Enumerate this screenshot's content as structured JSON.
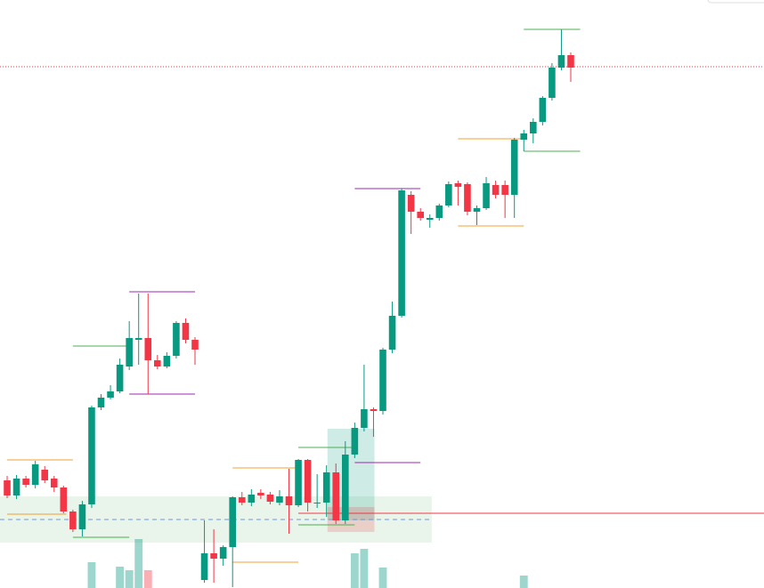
{
  "chart_data": {
    "type": "candlestick",
    "up_color": "#089981",
    "down_color": "#f23645",
    "xlim": [
      -0.76,
      80.57
    ],
    "ylim": [
      0,
      661
    ],
    "open": [
      121,
      104,
      123,
      116,
      133,
      123,
      113,
      86,
      66,
      94,
      203,
      214,
      221,
      249,
      279,
      281,
      256,
      249,
      261,
      298,
      279,
      9,
      39,
      33,
      46,
      102,
      96,
      107,
      105,
      96,
      103,
      93,
      144,
      95,
      96,
      130,
      76,
      150,
      180,
      201,
      199,
      268,
      306,
      442,
      423,
      414,
      416,
      430,
      455,
      454,
      423,
      427,
      453,
      453,
      442,
      504,
      511,
      524,
      551,
      585,
      599
    ],
    "high": [
      126,
      127,
      126,
      143,
      137,
      126,
      115,
      88,
      98,
      205,
      218,
      228,
      258,
      300,
      331,
      331,
      262,
      265,
      300,
      303,
      282,
      76,
      66,
      48,
      103,
      108,
      111,
      111,
      108,
      110,
      134,
      145,
      145,
      128,
      138,
      140,
      165,
      186,
      251,
      203,
      270,
      322,
      449,
      446,
      427,
      420,
      432,
      457,
      458,
      456,
      430,
      462,
      458,
      458,
      506,
      515,
      528,
      553,
      590,
      628,
      602
    ],
    "low": [
      101,
      100,
      113,
      112,
      118,
      108,
      84,
      63,
      58,
      90,
      200,
      212,
      219,
      245,
      251,
      218,
      246,
      247,
      258,
      275,
      251,
      6,
      6,
      25,
      1,
      93,
      92,
      100,
      94,
      93,
      61,
      91,
      86,
      90,
      80,
      72,
      72,
      146,
      176,
      170,
      195,
      264,
      304,
      398,
      413,
      405,
      413,
      428,
      430,
      419,
      408,
      425,
      438,
      416,
      416,
      491,
      500,
      520,
      548,
      582,
      569
    ],
    "close": [
      104,
      123,
      116,
      139,
      121,
      113,
      86,
      66,
      94,
      203,
      214,
      221,
      251,
      281,
      281,
      256,
      249,
      261,
      298,
      279,
      268,
      39,
      33,
      46,
      102,
      96,
      105,
      104,
      97,
      103,
      93,
      144,
      96,
      96,
      130,
      76,
      150,
      180,
      201,
      199,
      268,
      306,
      447,
      423,
      416,
      416,
      430,
      454,
      451,
      423,
      427,
      455,
      442,
      442,
      504,
      511,
      524,
      551,
      585,
      599,
      585
    ],
    "volume": [
      null,
      null,
      null,
      null,
      null,
      null,
      null,
      null,
      null,
      29,
      null,
      null,
      24,
      20,
      55,
      20,
      null,
      null,
      null,
      null,
      null,
      null,
      null,
      null,
      null,
      null,
      null,
      null,
      null,
      null,
      null,
      null,
      null,
      null,
      null,
      null,
      null,
      39,
      44,
      null,
      23,
      null,
      null,
      null,
      null,
      null,
      null,
      null,
      null,
      null,
      null,
      null,
      null,
      null,
      null,
      14,
      null,
      null,
      null,
      null,
      null
    ],
    "levels": [
      {
        "value": 144,
        "color": "#f0a030",
        "from": 0,
        "to": 7
      },
      {
        "value": 83,
        "color": "#f0a030",
        "from": 0,
        "to": 6.3
      },
      {
        "value": 272,
        "color": "#4caf50",
        "from": 7,
        "to": 13
      },
      {
        "value": 57,
        "color": "#4caf50",
        "from": 7,
        "to": 13
      },
      {
        "value": 333,
        "color": "#9c27b0",
        "from": 13,
        "to": 20
      },
      {
        "value": 218,
        "color": "#9c27b0",
        "from": 13,
        "to": 20
      },
      {
        "value": 135,
        "color": "#f0a030",
        "from": 24,
        "to": 31
      },
      {
        "value": 29,
        "color": "#f0a030",
        "from": 24,
        "to": 31
      },
      {
        "value": 158,
        "color": "#4caf50",
        "from": 31,
        "to": 37
      },
      {
        "value": 71,
        "color": "#4caf50",
        "from": 31,
        "to": 37
      },
      {
        "value": 449,
        "color": "#9c27b0",
        "from": 37,
        "to": 44
      },
      {
        "value": 141,
        "color": "#9c27b0",
        "from": 37,
        "to": 44
      },
      {
        "value": 505,
        "color": "#f0a030",
        "from": 48,
        "to": 55
      },
      {
        "value": 407,
        "color": "#f0a030",
        "from": 48,
        "to": 55
      },
      {
        "value": 628,
        "color": "#4caf50",
        "from": 55,
        "to": 61
      },
      {
        "value": 491,
        "color": "#4caf50",
        "from": 55,
        "to": 61
      },
      {
        "value": 84,
        "color": "#f23645",
        "from": 31,
        "to": 80.57
      },
      {
        "value": 586,
        "color": "#f23645",
        "from": -0.76,
        "to": 80.57,
        "style": "dotted"
      },
      {
        "value": 77,
        "color": "#6a9be0",
        "from": -0.76,
        "to": 45.2,
        "style": "dashed"
      }
    ],
    "zones": [
      {
        "top": 103,
        "bottom": 51,
        "from": -0.76,
        "to": 45.2,
        "color": "rgba(76,175,80,0.12)"
      },
      {
        "top": 179,
        "bottom": 76,
        "from": 34.1,
        "to": 39.1,
        "color": "rgba(8,153,129,0.2)"
      },
      {
        "top": 91,
        "bottom": 63,
        "from": 34.1,
        "to": 39.1,
        "color": "rgba(242,54,69,0.2)"
      }
    ]
  }
}
